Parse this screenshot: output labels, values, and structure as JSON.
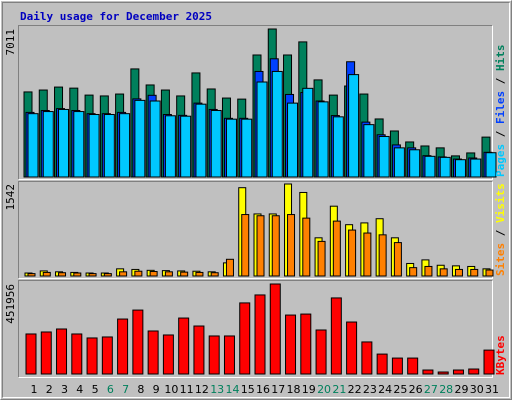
{
  "chart_data": {
    "type": "bar",
    "title": "Daily usage for December 2025",
    "categories": [
      "1",
      "2",
      "3",
      "4",
      "5",
      "6",
      "7",
      "8",
      "9",
      "10",
      "11",
      "12",
      "13",
      "14",
      "15",
      "16",
      "17",
      "18",
      "19",
      "20",
      "21",
      "22",
      "23",
      "24",
      "25",
      "26",
      "27",
      "28",
      "29",
      "30",
      "31"
    ],
    "category_colors": [
      "#000000",
      "#000000",
      "#000000",
      "#000000",
      "#000000",
      "#00805c",
      "#00805c",
      "#000000",
      "#000000",
      "#000000",
      "#000000",
      "#000000",
      "#00805c",
      "#00805c",
      "#000000",
      "#000000",
      "#000000",
      "#000000",
      "#000000",
      "#00805c",
      "#00805c",
      "#000000",
      "#000000",
      "#000000",
      "#000000",
      "#000000",
      "#00805c",
      "#00805c",
      "#000000",
      "#000000",
      "#000000"
    ],
    "legend_separator": " / ",
    "panels": [
      {
        "ylim": [
          0,
          7011
        ],
        "yticks": [
          7011
        ],
        "series": [
          {
            "name": "Hits",
            "color": "#00805c",
            "values": [
              4030,
              4120,
              4260,
              4210,
              3880,
              3840,
              3930,
              5120,
              4360,
              4120,
              3840,
              4930,
              4170,
              3740,
              3690,
              5780,
              7011,
              5780,
              6400,
              4600,
              3880,
              4310,
              3930,
              2750,
              2180,
              1660,
              1470,
              1380,
              1000,
              1140,
              1890
            ]
          },
          {
            "name": "Files",
            "color": "#0040ff",
            "values": [
              3060,
              3150,
              3240,
              3150,
              3000,
              3000,
              3060,
              3700,
              3870,
              2960,
              2920,
              3500,
              3200,
              2780,
              2780,
              5000,
              5600,
              3910,
              4000,
              3600,
              2910,
              5460,
              2600,
              2000,
              1520,
              1380,
              1010,
              950,
              850,
              900,
              1170
            ]
          },
          {
            "name": "Pages",
            "color": "#00c8ff",
            "values": [
              3000,
              3100,
              3200,
              3100,
              2960,
              2960,
              3000,
              3630,
              3600,
              2900,
              2880,
              3450,
              3150,
              2740,
              2740,
              4500,
              5000,
              3500,
              4200,
              3560,
              2850,
              4850,
              2480,
              1920,
              1380,
              1290,
              980,
              930,
              820,
              850,
              1150
            ]
          }
        ]
      },
      {
        "ylim": [
          0,
          1542
        ],
        "yticks": [
          1542
        ],
        "series": [
          {
            "name": "Visits",
            "color": "#ffff00",
            "values": [
              50,
              85,
              70,
              60,
              50,
              50,
              120,
              110,
              95,
              90,
              85,
              80,
              70,
              220,
              1480,
              1040,
              1040,
              1542,
              1400,
              640,
              1170,
              860,
              890,
              960,
              640,
              210,
              270,
              180,
              170,
              160,
              120
            ]
          },
          {
            "name": "Sites",
            "color": "#ff8000",
            "values": [
              40,
              60,
              55,
              50,
              40,
              40,
              70,
              80,
              75,
              70,
              65,
              60,
              55,
              280,
              1030,
              1010,
              1010,
              1030,
              970,
              580,
              920,
              770,
              720,
              690,
              560,
              140,
              160,
              120,
              110,
              110,
              100
            ]
          }
        ]
      },
      {
        "ylim": [
          0,
          451956
        ],
        "yticks": [
          451956
        ],
        "series": [
          {
            "name": "KBytes",
            "color": "#ff0000",
            "values": [
              201000,
              211000,
              226000,
              201000,
              181000,
              186000,
              276000,
              321000,
              216000,
              196000,
              281000,
              241000,
              191000,
              191000,
              357000,
              397000,
              451956,
              296000,
              301000,
              221000,
              382000,
              261000,
              161000,
              100000,
              80000,
              80000,
              20000,
              10000,
              20000,
              25000,
              120000
            ]
          }
        ]
      }
    ]
  }
}
